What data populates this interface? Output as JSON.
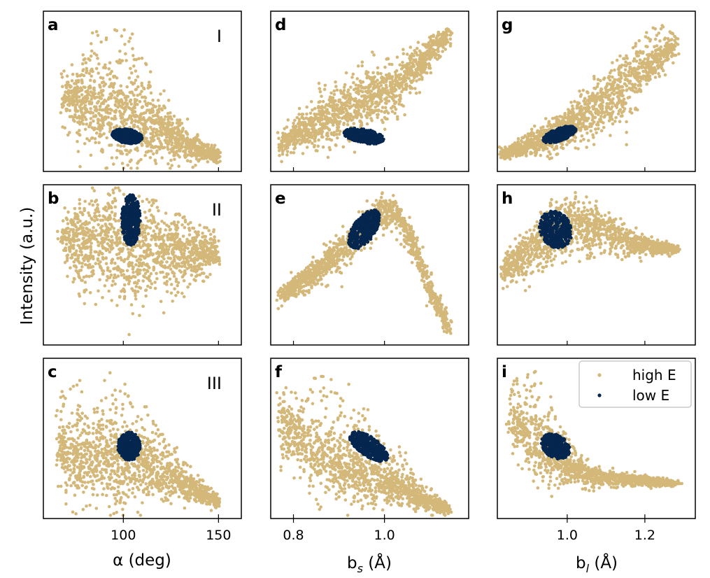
{
  "chart_data": {
    "type": "scatter",
    "ylabel": "Intensity (a.u.)",
    "colors": {
      "high": "#d4b87a",
      "low": "#04264f"
    },
    "legend": {
      "location": "top-right of panel i",
      "entries": [
        "high E",
        "low E"
      ]
    },
    "columns": [
      {
        "xlabel_text": "α (deg)",
        "xlim": [
          58,
          162
        ],
        "xticks": [
          100,
          150
        ],
        "xtick_labels": [
          "100",
          "150"
        ]
      },
      {
        "xlabel_main": "b",
        "xlabel_sub": "s",
        "xlabel_unit": "(Å)",
        "xlim": [
          0.75,
          1.185
        ],
        "xticks": [
          0.8,
          1.0
        ],
        "xtick_labels": [
          "0.8",
          "1.0"
        ]
      },
      {
        "xlabel_main": "b",
        "xlabel_sub": "l",
        "xlabel_unit": "(Å)",
        "xlim": [
          0.82,
          1.33
        ],
        "xticks": [
          1.0,
          1.2
        ],
        "xtick_labels": [
          "1.0",
          "1.2"
        ]
      }
    ],
    "rows": [
      {
        "regime": "I"
      },
      {
        "regime": "II"
      },
      {
        "regime": "III"
      }
    ],
    "panels": [
      {
        "letter": "a",
        "row": 0,
        "col": 0,
        "high": {
          "spine_x": [
            68,
            82,
            95,
            110,
            125,
            140,
            150
          ],
          "spine_y": [
            0.45,
            0.42,
            0.35,
            0.3,
            0.22,
            0.14,
            0.1
          ],
          "width_y": [
            0.16,
            0.28,
            0.35,
            0.28,
            0.16,
            0.08,
            0.04
          ],
          "top_sparse": [
            0.45,
            0.75,
            0.95,
            0.8,
            0.3,
            0.12,
            0.05
          ]
        },
        "low": {
          "cx": 102,
          "cy": 0.22,
          "rx": 8,
          "ry": 0.045,
          "angle_deg": -8
        }
      },
      {
        "letter": "b",
        "row": 1,
        "col": 0,
        "high": {
          "spine_x": [
            68,
            82,
            95,
            110,
            125,
            140,
            150
          ],
          "spine_y": [
            0.65,
            0.62,
            0.6,
            0.58,
            0.55,
            0.55,
            0.58
          ],
          "width_y": [
            0.22,
            0.3,
            0.36,
            0.34,
            0.25,
            0.16,
            0.1
          ],
          "top_sparse": [
            0.7,
            0.92,
            0.98,
            0.95,
            0.85,
            0.75,
            0.7
          ]
        },
        "low": {
          "cx": 104,
          "cy": 0.78,
          "rx": 5,
          "ry": 0.16,
          "angle_deg": 0
        }
      },
      {
        "letter": "c",
        "row": 2,
        "col": 0,
        "high": {
          "spine_x": [
            66,
            80,
            95,
            110,
            125,
            140,
            150
          ],
          "spine_y": [
            0.4,
            0.37,
            0.35,
            0.33,
            0.26,
            0.16,
            0.1
          ],
          "width_y": [
            0.2,
            0.3,
            0.33,
            0.24,
            0.15,
            0.08,
            0.04
          ],
          "top_sparse": [
            0.85,
            0.9,
            0.92,
            0.75,
            0.45,
            0.25,
            0.12
          ]
        },
        "low": {
          "cx": 103,
          "cy": 0.45,
          "rx": 6,
          "ry": 0.09,
          "angle_deg": 0
        }
      },
      {
        "letter": "d",
        "row": 0,
        "col": 1,
        "high": {
          "spine_x": [
            0.77,
            0.85,
            0.95,
            1.02,
            1.08,
            1.14
          ],
          "spine_y": [
            0.16,
            0.3,
            0.42,
            0.52,
            0.68,
            0.85
          ],
          "width_y": [
            0.08,
            0.15,
            0.22,
            0.2,
            0.12,
            0.06
          ],
          "top_sparse": [
            0.2,
            0.4,
            0.55,
            0.6,
            0.78,
            0.9
          ]
        },
        "low": {
          "cx": 0.955,
          "cy": 0.22,
          "rx": 0.045,
          "ry": 0.045,
          "angle_deg": -10
        }
      },
      {
        "letter": "e",
        "row": 1,
        "col": 1,
        "high": {
          "spine_x": [
            0.77,
            0.85,
            0.92,
            0.98,
            1.02,
            1.06,
            1.1,
            1.14
          ],
          "spine_y": [
            0.3,
            0.45,
            0.62,
            0.8,
            0.85,
            0.65,
            0.35,
            0.1
          ],
          "width_y": [
            0.06,
            0.1,
            0.14,
            0.12,
            0.1,
            0.1,
            0.08,
            0.05
          ],
          "top_sparse": [
            0.35,
            0.5,
            0.7,
            0.88,
            0.95,
            0.7,
            0.4,
            0.15
          ]
        },
        "low": {
          "cx": 0.955,
          "cy": 0.72,
          "rx": 0.05,
          "ry": 0.07,
          "angle_deg": 55
        }
      },
      {
        "letter": "f",
        "row": 2,
        "col": 1,
        "high": {
          "spine_x": [
            0.77,
            0.85,
            0.92,
            1.0,
            1.08,
            1.14
          ],
          "spine_y": [
            0.6,
            0.4,
            0.3,
            0.22,
            0.12,
            0.05
          ],
          "width_y": [
            0.22,
            0.26,
            0.22,
            0.16,
            0.08,
            0.03
          ],
          "top_sparse": [
            0.6,
            0.9,
            0.85,
            0.55,
            0.25,
            0.08
          ]
        },
        "low": {
          "cx": 0.965,
          "cy": 0.45,
          "rx": 0.05,
          "ry": 0.06,
          "angle_deg": -35
        }
      },
      {
        "letter": "g",
        "row": 0,
        "col": 2,
        "high": {
          "spine_x": [
            0.83,
            0.95,
            1.05,
            1.15,
            1.22,
            1.28
          ],
          "spine_y": [
            0.1,
            0.2,
            0.35,
            0.52,
            0.68,
            0.78
          ],
          "width_y": [
            0.03,
            0.1,
            0.16,
            0.22,
            0.14,
            0.08
          ],
          "top_sparse": [
            0.15,
            0.3,
            0.5,
            0.7,
            0.95,
            0.85
          ]
        },
        "low": {
          "cx": 0.98,
          "cy": 0.23,
          "rx": 0.045,
          "ry": 0.04,
          "angle_deg": 20
        }
      },
      {
        "letter": "h",
        "row": 1,
        "col": 2,
        "high": {
          "spine_x": [
            0.83,
            0.92,
            1.0,
            1.08,
            1.15,
            1.22,
            1.28
          ],
          "spine_y": [
            0.45,
            0.62,
            0.75,
            0.72,
            0.65,
            0.6,
            0.6
          ],
          "width_y": [
            0.1,
            0.2,
            0.2,
            0.16,
            0.1,
            0.05,
            0.03
          ],
          "top_sparse": [
            0.5,
            0.75,
            0.9,
            0.82,
            0.72,
            0.65,
            0.62
          ]
        },
        "low": {
          "cx": 0.97,
          "cy": 0.72,
          "rx": 0.04,
          "ry": 0.12,
          "angle_deg": 25
        }
      },
      {
        "letter": "i",
        "row": 2,
        "col": 2,
        "high": {
          "spine_x": [
            0.85,
            0.92,
            1.0,
            1.08,
            1.16,
            1.22,
            1.28
          ],
          "spine_y": [
            0.65,
            0.45,
            0.32,
            0.25,
            0.24,
            0.23,
            0.22
          ],
          "width_y": [
            0.2,
            0.25,
            0.12,
            0.06,
            0.04,
            0.03,
            0.02
          ],
          "top_sparse": [
            0.85,
            0.95,
            0.5,
            0.3,
            0.27,
            0.26,
            0.25
          ]
        },
        "low": {
          "cx": 0.97,
          "cy": 0.45,
          "rx": 0.04,
          "ry": 0.07,
          "angle_deg": -35
        }
      }
    ]
  }
}
